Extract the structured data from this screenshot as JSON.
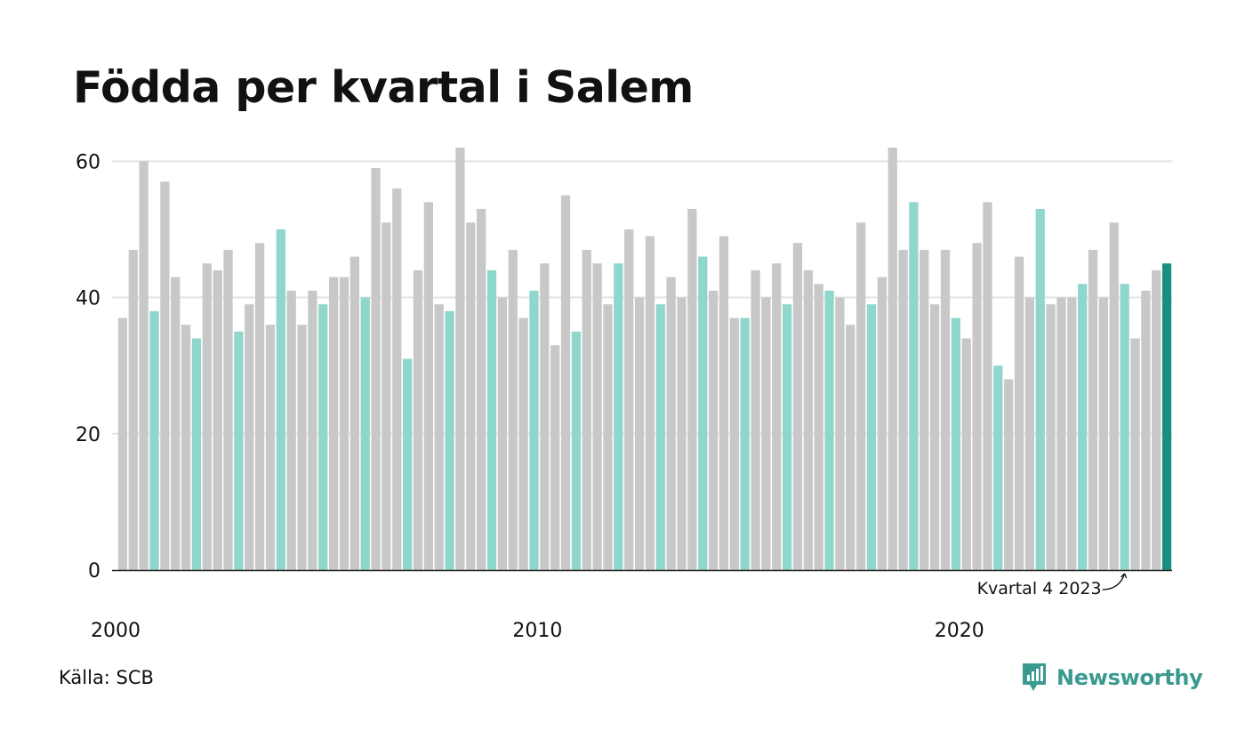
{
  "title": "Födda per kvartal i Salem",
  "source": "Källa: SCB",
  "brand": "Newsworthy",
  "colors": {
    "gray": "#c8c8c8",
    "q4": "#8fd6cc",
    "latest": "#1a8f81",
    "grid": "#e3e3e3",
    "axis": "#222222",
    "brand": "#3a9a90"
  },
  "chart_data": {
    "type": "bar",
    "ylim": [
      0,
      62
    ],
    "yticks": [
      0,
      20,
      40,
      60
    ],
    "xtick_labels": [
      "2000",
      "2010",
      "2020"
    ],
    "xtick_start_index": [
      0,
      40,
      80
    ],
    "annotation": "Kvartal 4 2023",
    "highlight_quarter": 4,
    "values": [
      37,
      47,
      60,
      38,
      57,
      43,
      36,
      34,
      45,
      44,
      47,
      35,
      39,
      48,
      36,
      50,
      41,
      36,
      41,
      39,
      43,
      43,
      46,
      40,
      59,
      51,
      56,
      31,
      44,
      54,
      39,
      38,
      62,
      51,
      53,
      44,
      40,
      47,
      37,
      41,
      45,
      33,
      55,
      35,
      47,
      45,
      39,
      45,
      50,
      40,
      49,
      39,
      43,
      40,
      53,
      46,
      41,
      49,
      37,
      37,
      44,
      40,
      45,
      39,
      48,
      44,
      42,
      41,
      40,
      36,
      51,
      39,
      43,
      62,
      47,
      54,
      47,
      39,
      47,
      37,
      34,
      48,
      54,
      30,
      28,
      46,
      40,
      53,
      39,
      40,
      40,
      42,
      47,
      40,
      51,
      42,
      34,
      41,
      44,
      45
    ]
  }
}
